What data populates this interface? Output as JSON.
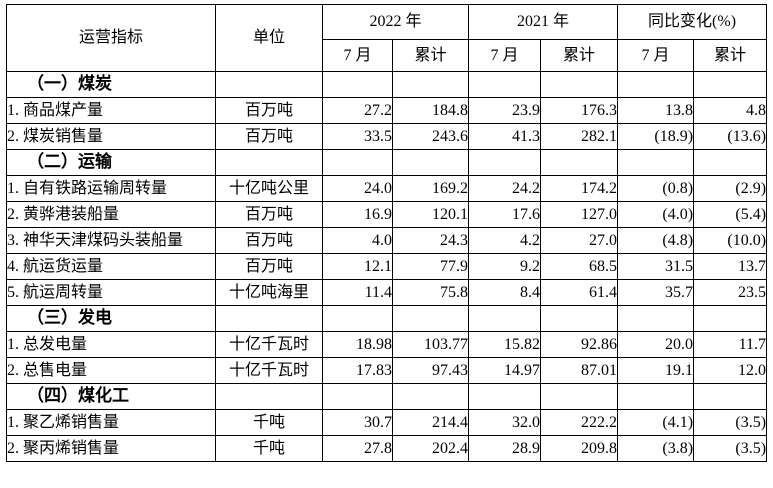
{
  "page": {
    "background": "#ffffff",
    "text_color": "#000000",
    "border_color": "#000000"
  },
  "table": {
    "header": {
      "col_indicator": "运营指标",
      "col_unit": "单位",
      "group_2022": "2022 年",
      "group_2021": "2021 年",
      "group_yoy": "同比变化(%)",
      "sub_month": "7 月",
      "sub_cumulative": "累计"
    },
    "columns_order": [
      "2022-7月",
      "2022-累计",
      "2021-7月",
      "2021-累计",
      "同比变化-7月",
      "同比变化-累计"
    ],
    "rows": [
      {
        "type": "section",
        "label": "（一）煤炭"
      },
      {
        "type": "data",
        "label": "1. 商品煤产量",
        "unit": "百万吨",
        "values": [
          "27.2",
          "184.8",
          "23.9",
          "176.3",
          "13.8",
          "4.8"
        ]
      },
      {
        "type": "data",
        "label": "2. 煤炭销售量",
        "unit": "百万吨",
        "values": [
          "33.5",
          "243.6",
          "41.3",
          "282.1",
          "(18.9)",
          "(13.6)"
        ]
      },
      {
        "type": "section",
        "label": "（二）运输"
      },
      {
        "type": "data",
        "label": "1. 自有铁路运输周转量",
        "unit": "十亿吨公里",
        "values": [
          "24.0",
          "169.2",
          "24.2",
          "174.2",
          "(0.8)",
          "(2.9)"
        ]
      },
      {
        "type": "data",
        "label": "2. 黄骅港装船量",
        "unit": "百万吨",
        "values": [
          "16.9",
          "120.1",
          "17.6",
          "127.0",
          "(4.0)",
          "(5.4)"
        ]
      },
      {
        "type": "data",
        "label": "3. 神华天津煤码头装船量",
        "unit": "百万吨",
        "values": [
          "4.0",
          "24.3",
          "4.2",
          "27.0",
          "(4.8)",
          "(10.0)"
        ]
      },
      {
        "type": "data",
        "label": "4. 航运货运量",
        "unit": "百万吨",
        "values": [
          "12.1",
          "77.9",
          "9.2",
          "68.5",
          "31.5",
          "13.7"
        ]
      },
      {
        "type": "data",
        "label": "5. 航运周转量",
        "unit": "十亿吨海里",
        "values": [
          "11.4",
          "75.8",
          "8.4",
          "61.4",
          "35.7",
          "23.5"
        ]
      },
      {
        "type": "section",
        "label": "（三）发电"
      },
      {
        "type": "data",
        "label": "1. 总发电量",
        "unit": "十亿千瓦时",
        "values": [
          "18.98",
          "103.77",
          "15.82",
          "92.86",
          "20.0",
          "11.7"
        ]
      },
      {
        "type": "data",
        "label": "2. 总售电量",
        "unit": "十亿千瓦时",
        "values": [
          "17.83",
          "97.43",
          "14.97",
          "87.01",
          "19.1",
          "12.0"
        ]
      },
      {
        "type": "section",
        "label": "（四）煤化工"
      },
      {
        "type": "data",
        "label": "1. 聚乙烯销售量",
        "unit": "千吨",
        "values": [
          "30.7",
          "214.4",
          "32.0",
          "222.2",
          "(4.1)",
          "(3.5)"
        ]
      },
      {
        "type": "data",
        "label": "2. 聚丙烯销售量",
        "unit": "千吨",
        "values": [
          "27.8",
          "202.4",
          "28.9",
          "209.8",
          "(3.8)",
          "(3.5)"
        ]
      }
    ]
  }
}
